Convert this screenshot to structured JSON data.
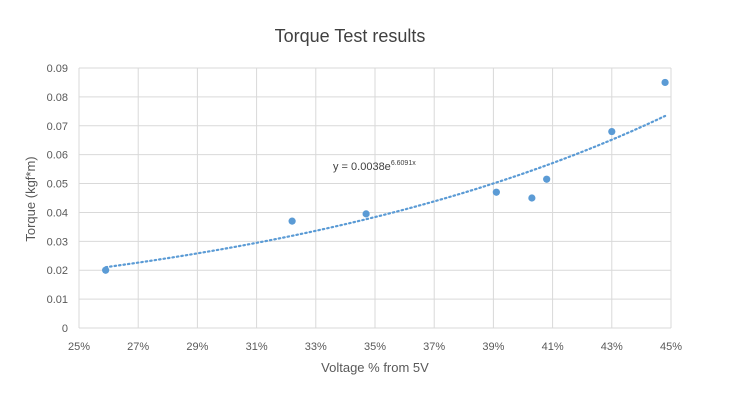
{
  "chart_data": {
    "type": "scatter",
    "title": "Torque Test results",
    "xlabel": "Voltage % from 5V",
    "ylabel": "Torque (kgf*m)",
    "xlim": [
      0.25,
      0.45
    ],
    "ylim": [
      0,
      0.09
    ],
    "x_ticks": [
      "25%",
      "27%",
      "29%",
      "31%",
      "33%",
      "35%",
      "37%",
      "39%",
      "41%",
      "43%",
      "45%"
    ],
    "y_ticks": [
      "0",
      "0.01",
      "0.02",
      "0.03",
      "0.04",
      "0.05",
      "0.06",
      "0.07",
      "0.08",
      "0.09"
    ],
    "grid": true,
    "series": [
      {
        "points": [
          {
            "x": 0.259,
            "y": 0.02
          },
          {
            "x": 0.322,
            "y": 0.037
          },
          {
            "x": 0.347,
            "y": 0.0395
          },
          {
            "x": 0.391,
            "y": 0.047
          },
          {
            "x": 0.403,
            "y": 0.045
          },
          {
            "x": 0.408,
            "y": 0.0515
          },
          {
            "x": 0.43,
            "y": 0.068
          },
          {
            "x": 0.448,
            "y": 0.085
          }
        ]
      }
    ],
    "trendline": {
      "type": "exponential",
      "a": 0.0038,
      "b": 6.6091,
      "x_range": [
        0.259,
        0.448
      ],
      "equation_prefix": "y = 0.0038e",
      "equation_exponent": "6.6091x"
    },
    "colors": {
      "points": "#5B9BD5",
      "trendline": "#5B9BD5",
      "grid": "#D9D9D9",
      "axis_text": "#595959",
      "title_text": "#404040"
    }
  }
}
